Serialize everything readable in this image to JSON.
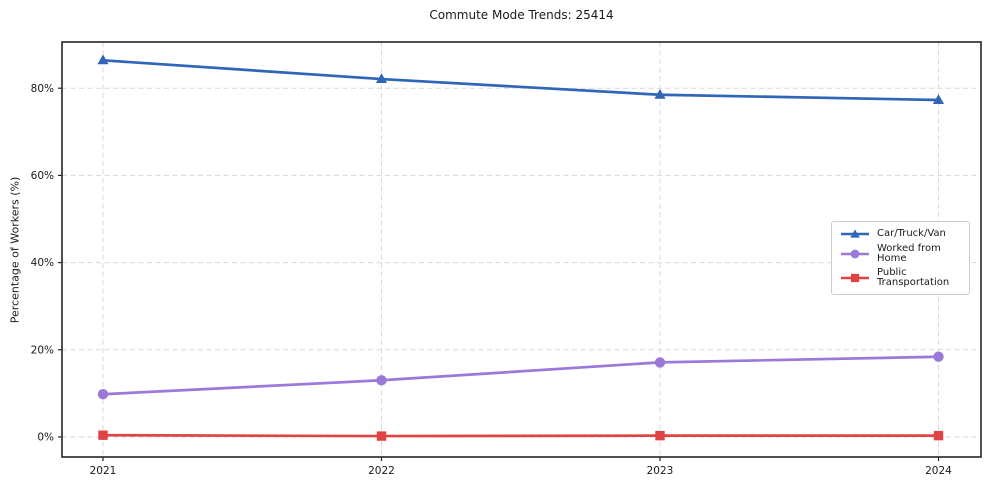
{
  "chart_data": {
    "type": "line",
    "title": "Commute Mode Trends: 25414",
    "xlabel": "",
    "ylabel": "Percentage of Workers (%)",
    "x": [
      "2021",
      "2022",
      "2023",
      "2024"
    ],
    "y_tick_values": [
      0,
      20,
      40,
      60,
      80
    ],
    "y_tick_labels": [
      "0%",
      "20%",
      "40%",
      "60%",
      "80%"
    ],
    "ylim": [
      -4.6,
      90.6
    ],
    "grid": "dashed horizontal and vertical",
    "legend_position": "center-right",
    "series": [
      {
        "name": "Car/Truck/Van",
        "color": "#2f66b7",
        "marker": "triangle-up",
        "values": [
          86.4,
          82.1,
          78.5,
          77.3
        ]
      },
      {
        "name": "Worked from Home",
        "color": "#9b79d8",
        "marker": "circle",
        "values": [
          9.8,
          13.0,
          17.1,
          18.4
        ]
      },
      {
        "name": "Public Transportation",
        "color": "#e04343",
        "marker": "square",
        "values": [
          0.4,
          0.2,
          0.3,
          0.3
        ]
      }
    ]
  },
  "colors": {
    "background": "#ffffff",
    "grid": "#d9d9d9",
    "axis": "#262626",
    "text": "#1a1a1a",
    "legend_border": "#cbcbcb"
  }
}
